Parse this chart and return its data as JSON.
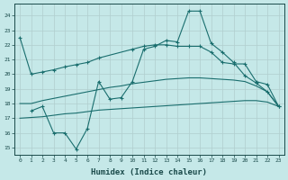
{
  "xlabel": "Humidex (Indice chaleur)",
  "xlim": [
    -0.5,
    23.5
  ],
  "ylim": [
    14.5,
    24.8
  ],
  "yticks": [
    15,
    16,
    17,
    18,
    19,
    20,
    21,
    22,
    23,
    24
  ],
  "xticks": [
    0,
    1,
    2,
    3,
    4,
    5,
    6,
    7,
    8,
    9,
    10,
    11,
    12,
    13,
    14,
    15,
    16,
    17,
    18,
    19,
    20,
    21,
    22,
    23
  ],
  "bg_color": "#c5e8e8",
  "grid_color": "#b0cece",
  "line_color": "#1a6e6e",
  "curves": [
    {
      "x": [
        0,
        1,
        2,
        3,
        4,
        5,
        6,
        7,
        10,
        11,
        12,
        13,
        14,
        15,
        16,
        17,
        18,
        19,
        20,
        21,
        22,
        23
      ],
      "y": [
        22.5,
        20.0,
        20.15,
        20.3,
        20.5,
        20.65,
        20.8,
        21.1,
        21.7,
        21.9,
        22.0,
        22.0,
        21.9,
        21.9,
        21.9,
        21.5,
        20.8,
        20.7,
        20.7,
        19.5,
        19.3,
        17.8
      ],
      "marker": "+"
    },
    {
      "x": [
        1,
        2,
        3,
        4,
        5,
        6,
        7,
        8,
        9,
        10,
        11,
        12,
        13,
        14,
        15,
        16,
        17,
        18,
        19,
        20,
        21,
        22,
        23
      ],
      "y": [
        17.5,
        17.8,
        16.0,
        16.0,
        14.9,
        16.3,
        19.5,
        18.3,
        18.4,
        19.5,
        21.7,
        21.9,
        22.3,
        22.2,
        24.3,
        24.3,
        22.1,
        21.5,
        20.8,
        19.9,
        19.4,
        18.8,
        17.8
      ],
      "marker": "+"
    },
    {
      "x": [
        0,
        1,
        2,
        3,
        4,
        5,
        6,
        7,
        8,
        9,
        10,
        11,
        12,
        13,
        14,
        15,
        16,
        17,
        18,
        19,
        20,
        21,
        22,
        23
      ],
      "y": [
        18.0,
        18.0,
        18.2,
        18.35,
        18.5,
        18.65,
        18.8,
        18.95,
        19.1,
        19.2,
        19.35,
        19.45,
        19.55,
        19.65,
        19.7,
        19.75,
        19.75,
        19.7,
        19.65,
        19.6,
        19.5,
        19.2,
        18.8,
        17.8
      ],
      "marker": null
    },
    {
      "x": [
        0,
        1,
        2,
        3,
        4,
        5,
        6,
        7,
        8,
        9,
        10,
        11,
        12,
        13,
        14,
        15,
        16,
        17,
        18,
        19,
        20,
        21,
        22,
        23
      ],
      "y": [
        17.0,
        17.05,
        17.1,
        17.2,
        17.3,
        17.35,
        17.45,
        17.55,
        17.6,
        17.65,
        17.7,
        17.75,
        17.8,
        17.85,
        17.9,
        17.95,
        18.0,
        18.05,
        18.1,
        18.15,
        18.2,
        18.2,
        18.1,
        17.8
      ],
      "marker": null
    }
  ]
}
